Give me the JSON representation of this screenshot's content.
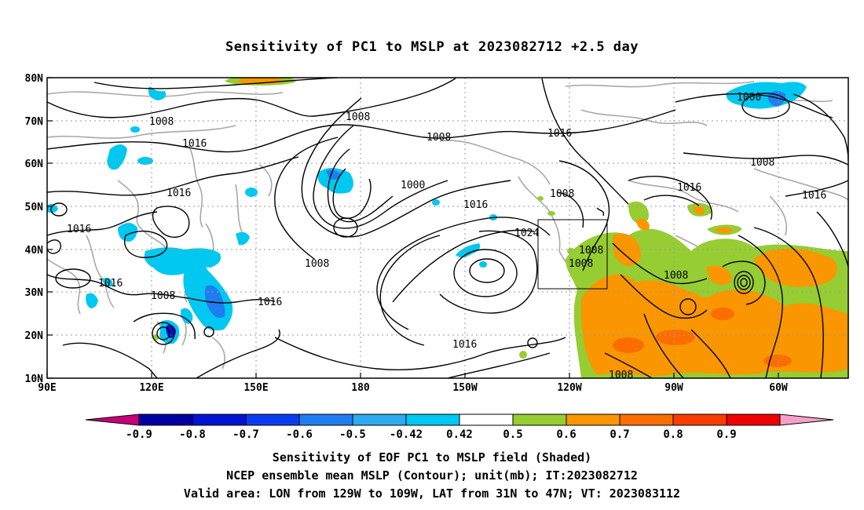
{
  "title": "Sensitivity of PC1 to MSLP at 2023082712 +2.5 day",
  "axes": {
    "lat_labels": [
      "80N",
      "70N",
      "60N",
      "50N",
      "40N",
      "30N",
      "20N",
      "10N"
    ],
    "lon_labels": [
      "90E",
      "120E",
      "150E",
      "180",
      "150W",
      "120W",
      "90W",
      "60W"
    ]
  },
  "colorbar": {
    "labels": [
      "-0.9",
      "-0.8",
      "-0.7",
      "-0.6",
      "-0.5",
      "-0.42",
      "0.42",
      "0.5",
      "0.6",
      "0.7",
      "0.8",
      "0.9"
    ],
    "colors": [
      "#c8007a",
      "#0000a0",
      "#0014d2",
      "#0a3cf0",
      "#1e7ef0",
      "#2eaaf0",
      "#00c8f0",
      "#ffffff",
      "#96cd32",
      "#fa9600",
      "#fa6e00",
      "#fa3c00",
      "#f00000",
      "#f5a0c8"
    ]
  },
  "contour_labels": {
    "c1008_nw": "1008",
    "c1008_n": "1008",
    "c1016_n": "1016",
    "c1008_mid": "1008",
    "c1016_ne": "1016",
    "c1000_ne": "1000",
    "c1008_ne": "1008",
    "c1016_ne2": "1016",
    "c1016_e": "1016",
    "c1016_w1": "1016",
    "c1016_w2": "1016",
    "c1016_w3": "1016",
    "c1008_w": "1008",
    "c1000_mid": "1000",
    "c1016_mid": "1016",
    "c1008_mid2": "1008",
    "c1016_mid2": "1016",
    "c1024": "1024",
    "c1008_pacnw": "1008",
    "c1008_box1": "1008",
    "c1008_box2": "1008",
    "c1016_s": "1016",
    "c1008_gulf": "1008",
    "c1008_se": "1008"
  },
  "valid_box": {
    "lon_range": [
      "129W",
      "109W"
    ],
    "lat_range": [
      "31N",
      "47N"
    ]
  },
  "captions": {
    "line1": "Sensitivity of EOF PC1 to MSLP field (Shaded)",
    "line2": "NCEP ensemble mean MSLP (Contour); unit(mb); IT:2023082712",
    "line3": "Valid area: LON from 129W to 109W, LAT from 31N to 47N; VT: 2023083112"
  }
}
